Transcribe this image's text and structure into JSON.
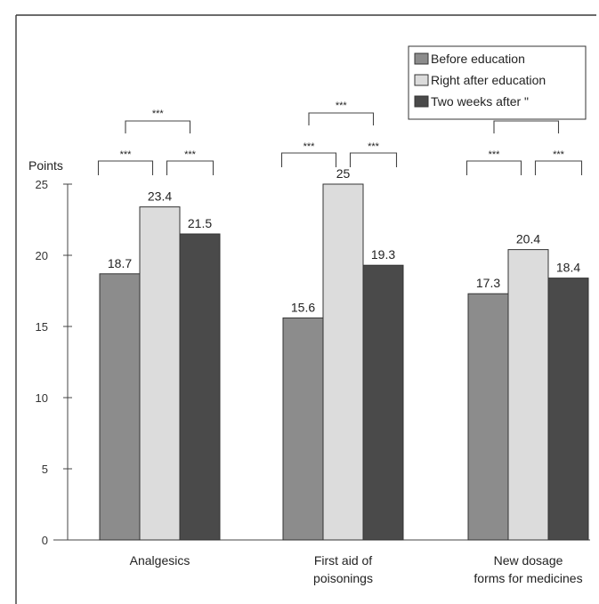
{
  "chart_data": {
    "type": "bar",
    "ylabel": "Points",
    "ylim": [
      0,
      25
    ],
    "yticks": [
      0,
      5,
      10,
      15,
      20,
      25
    ],
    "grid": false,
    "legend_position": "top-right",
    "categories": [
      [
        "Analgesics"
      ],
      [
        "First aid of",
        "poisonings"
      ],
      [
        "New dosage",
        "forms for medicines"
      ]
    ],
    "series": [
      {
        "name": "Before education",
        "color": "#8c8c8c",
        "values": [
          18.7,
          15.6,
          17.3
        ]
      },
      {
        "name": "Right after education",
        "color": "#dcdcdc",
        "values": [
          23.4,
          25,
          20.4
        ]
      },
      {
        "name": "Two weeks after \"",
        "color": "#4a4a4a",
        "values": [
          21.5,
          19.3,
          18.4
        ]
      }
    ],
    "value_labels": [
      [
        "18.7",
        "23.4",
        "21.5"
      ],
      [
        "15.6",
        "25",
        "19.3"
      ],
      [
        "17.3",
        "20.4",
        "18.4"
      ]
    ],
    "significance": [
      {
        "label": "***",
        "top": "***",
        "left": "***",
        "right": "***"
      },
      {
        "label": "***",
        "top": "***",
        "left": "***",
        "right": "***"
      },
      {
        "label": "*",
        "top": "*",
        "left": "***",
        "right": "***"
      }
    ]
  }
}
